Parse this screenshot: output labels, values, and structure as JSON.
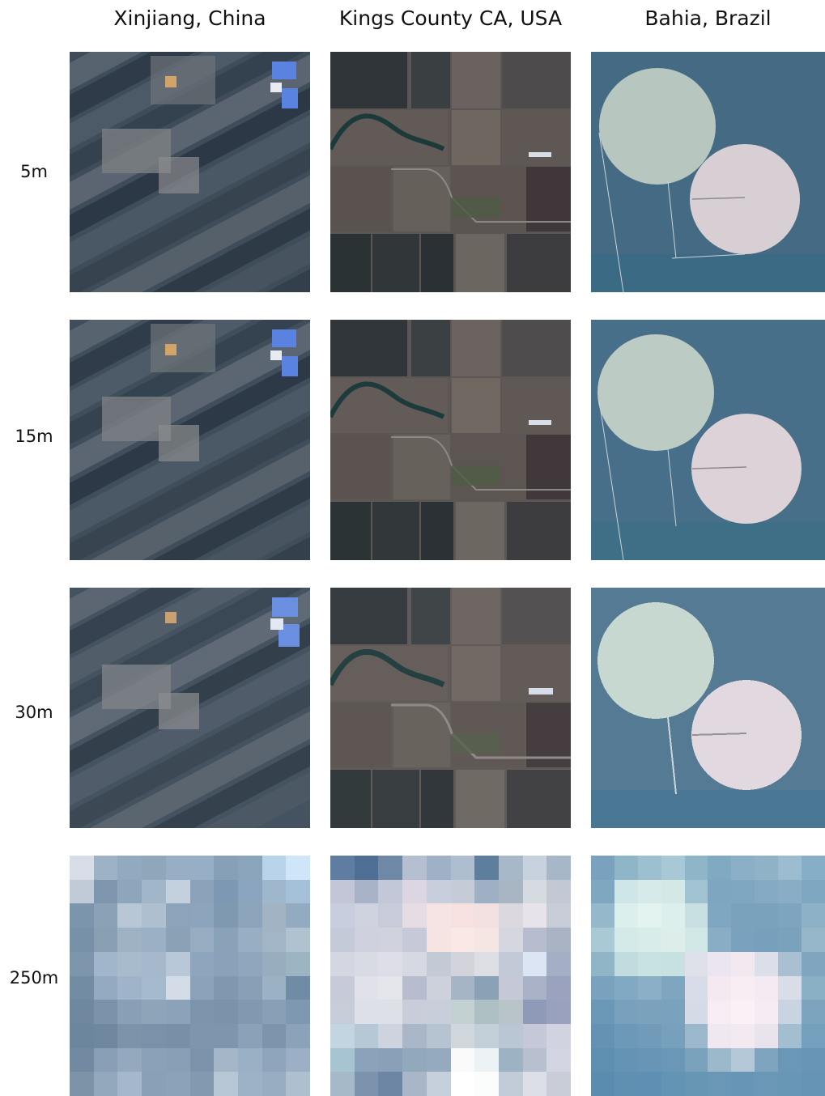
{
  "columns": [
    "Xinjiang, China",
    "Kings County CA, USA",
    "Bahia, Brazil"
  ],
  "rows": [
    "5m",
    "15m",
    "30m",
    "250m"
  ],
  "coarse_tiles": {
    "xinjiang": [
      "#d8dde8",
      "#9eb2c6",
      "#92aabf",
      "#8fa6bb",
      "#98aec4",
      "#96aec6",
      "#879fb7",
      "#8aa4bc",
      "#b9d4ea",
      "#cfe6f8",
      "#c1cbd8",
      "#7f97ae",
      "#8ea5bb",
      "#a2b6c9",
      "#c3d0de",
      "#8aa3bb",
      "#7d98b2",
      "#8aa4bf",
      "#9fb7cd",
      "#a4c0d8",
      "#7a95ac",
      "#8aa1b6",
      "#b8c7d6",
      "#aebfcf",
      "#8ca4b9",
      "#8da5bc",
      "#7f99b0",
      "#8ca4ba",
      "#a2b4c4",
      "#93abc1",
      "#7791a8",
      "#899fb2",
      "#9fb2c4",
      "#9bb0c4",
      "#8aa1b6",
      "#97acc0",
      "#8aa2b8",
      "#98aec2",
      "#a2b5c6",
      "#b0c2cf",
      "#7d96ac",
      "#a1b6ca",
      "#a8bbcd",
      "#a5b8cc",
      "#b8c8d8",
      "#8ea6bd",
      "#8aa2b9",
      "#8fa6bc",
      "#98aebf",
      "#9bb5c2",
      "#728ca3",
      "#93aac0",
      "#9fb4c8",
      "#a6bace",
      "#d4dce8",
      "#8aa3bb",
      "#7f98b0",
      "#889fb6",
      "#9bb1c4",
      "#6f8ba6",
      "#6f889f",
      "#7b93aa",
      "#889fb5",
      "#8ea4b9",
      "#8ba2b8",
      "#7d95ac",
      "#7a93aa",
      "#8099b0",
      "#889fb6",
      "#7d98b0",
      "#6c869d",
      "#6f889f",
      "#7c94aa",
      "#7a92a9",
      "#7790a7",
      "#7e96ad",
      "#7d96ad",
      "#8aa1b7",
      "#7d95ac",
      "#8aa3b8",
      "#718aa1",
      "#899fb5",
      "#94a9be",
      "#8aa1b7",
      "#889fb6",
      "#7c94ab",
      "#a4b6c7",
      "#9ab0c5",
      "#8ea5bb",
      "#9bb0c4",
      "#7c93a8",
      "#94a8bd",
      "#a5b7cb",
      "#8aa0b6",
      "#8ca2b8",
      "#8299af",
      "#b7c6d4",
      "#9eb2c6",
      "#98adc2",
      "#aebfd0"
    ],
    "kings": [
      "#5f7da1",
      "#4f6e94",
      "#6e88a6",
      "#b6bfcf",
      "#9eb1c6",
      "#aebdcf",
      "#5e7e9e",
      "#a7b8c8",
      "#c8d1de",
      "#a8b7c8",
      "#c2c6d6",
      "#a9b3c8",
      "#c2c8d7",
      "#dcd6e2",
      "#c8cfdc",
      "#c6ccd7",
      "#9fb0c4",
      "#a8b6c4",
      "#d6dbe2",
      "#c2c9d4",
      "#c9cede",
      "#cfd3e0",
      "#c8cbda",
      "#e5dde3",
      "#f6e3e3",
      "#f6e1e0",
      "#f3e0e1",
      "#dcd8e0",
      "#e6e4ea",
      "#c7ccd6",
      "#c5cad8",
      "#cfd2de",
      "#d0d3de",
      "#c6cad8",
      "#f6e4e3",
      "#fae8e5",
      "#f6e6e3",
      "#d5d6e0",
      "#b7bccf",
      "#a9b3c4",
      "#d4d6e1",
      "#d9dbe4",
      "#dcdde7",
      "#d6d9e2",
      "#c4c9d6",
      "#d3d3dc",
      "#dddde4",
      "#c2cad8",
      "#dbe5f3",
      "#a4aec4",
      "#c7cbd9",
      "#e0e1ea",
      "#e5e5ec",
      "#b8bccf",
      "#cdd1dc",
      "#a6b5c6",
      "#8ba1b6",
      "#c5c9d7",
      "#a9b2c6",
      "#9aa2be",
      "#c7cdd8",
      "#dde0e8",
      "#dde0e7",
      "#c8cdd9",
      "#c9cfda",
      "#c3d0d1",
      "#aebfc4",
      "#b8c4c8",
      "#8f99b8",
      "#9aa1bf",
      "#c3d5e0",
      "#b6c8d6",
      "#cdd3df",
      "#a9b7c8",
      "#b6c4d2",
      "#cfd7dd",
      "#c3cfd8",
      "#bac6d3",
      "#c5c8d8",
      "#d2d3e0",
      "#a6c4d2",
      "#8aa2ba",
      "#8aa0b8",
      "#92a8bb",
      "#95aabf",
      "#fafafb",
      "#edf3f4",
      "#9db3c4",
      "#b8bfcf",
      "#d3d6e2",
      "#a6b9c8",
      "#7b93ad",
      "#6d86a3",
      "#a8b6c8",
      "#c6d0dc",
      "#ffffff",
      "#fbfcfc",
      "#c2ccd8",
      "#dddfe7",
      "#c9cdd8"
    ],
    "bahia": [
      "#7aa2bf",
      "#8fb5c8",
      "#9cc0d0",
      "#a8c8d6",
      "#8fb5c9",
      "#80a9c2",
      "#8aafc6",
      "#8fb2c7",
      "#9cbdcf",
      "#86aec6",
      "#7fa7c0",
      "#cfe6e8",
      "#d6ebe9",
      "#d4e8e6",
      "#a0c2d1",
      "#7ea6c1",
      "#7fa7c1",
      "#85aac3",
      "#88adc5",
      "#7ea7c1",
      "#95b8cb",
      "#dbefec",
      "#e2f3f0",
      "#dcefed",
      "#c9e0e2",
      "#7fa7c1",
      "#7aa2bd",
      "#7aa2bd",
      "#7da5bf",
      "#8db1c6",
      "#a9c9d4",
      "#d3eae8",
      "#d8ece9",
      "#dcedea",
      "#d2e8e7",
      "#88adc4",
      "#7aa2be",
      "#77a0bc",
      "#7aa2bd",
      "#96b6ca",
      "#8fb5c7",
      "#c0dcdf",
      "#c8e1e1",
      "#c7e0e0",
      "#dee1ea",
      "#ebe5ef",
      "#f1e8f0",
      "#dcdee9",
      "#a9c0d2",
      "#7fa5bf",
      "#7aa2be",
      "#82a9c3",
      "#8aafc6",
      "#7ea6c0",
      "#d8dce9",
      "#f4e9f1",
      "#f9edf4",
      "#f4eaf2",
      "#d8dde8",
      "#8ab0c6",
      "#6b97b6",
      "#79a1bd",
      "#7aa2bd",
      "#7aa2be",
      "#d5dae7",
      "#f7ecf3",
      "#fbf0f6",
      "#f5ebf3",
      "#c8d4e1",
      "#7ca4bf",
      "#6592b3",
      "#6d98b7",
      "#719bb9",
      "#77a0bc",
      "#9ab7cb",
      "#f0e8f1",
      "#f3e9f1",
      "#e8e3ed",
      "#a3bed0",
      "#74a0bd",
      "#5e8fb1",
      "#6593b4",
      "#6895b5",
      "#6b97b6",
      "#7ba2bd",
      "#9cb9cc",
      "#b3c7d7",
      "#7fa4bf",
      "#6a97b5",
      "#6894b5",
      "#5a8cb0",
      "#5f90b2",
      "#5f8fb2",
      "#6394b4",
      "#6795b4",
      "#6a97b5",
      "#6795b5",
      "#6a97b6",
      "#6896b5",
      "#6694b4"
    ]
  }
}
